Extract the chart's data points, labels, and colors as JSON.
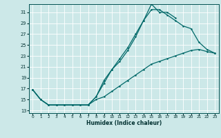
{
  "xlabel": "Humidex (Indice chaleur)",
  "bg_color": "#cce8e8",
  "line_color": "#006868",
  "grid_color": "#ffffff",
  "xlim": [
    -0.5,
    23.5
  ],
  "ylim": [
    12.5,
    32.5
  ],
  "xticks": [
    0,
    1,
    2,
    3,
    4,
    5,
    6,
    7,
    8,
    9,
    10,
    11,
    12,
    13,
    14,
    15,
    16,
    17,
    18,
    19,
    20,
    21,
    22,
    23
  ],
  "yticks": [
    13,
    15,
    17,
    19,
    21,
    23,
    25,
    27,
    29,
    31
  ],
  "line1_x": [
    0,
    1,
    2,
    3,
    4,
    5,
    6,
    7,
    8,
    9,
    10,
    11,
    12,
    13,
    14,
    15,
    16,
    17,
    18
  ],
  "line1_y": [
    16.8,
    15.0,
    14.0,
    14.0,
    14.0,
    14.0,
    14.0,
    14.0,
    15.5,
    18.5,
    20.5,
    22.5,
    24.5,
    27.0,
    29.5,
    32.5,
    31.0,
    31.0,
    30.0
  ],
  "line2_x": [
    0,
    1,
    2,
    3,
    4,
    5,
    6,
    7,
    8,
    9,
    10,
    11,
    12,
    13,
    14,
    15,
    16,
    17,
    18,
    19,
    20,
    21,
    22,
    23
  ],
  "line2_y": [
    16.8,
    15.0,
    14.0,
    14.0,
    14.0,
    14.0,
    14.0,
    14.0,
    15.5,
    18.0,
    20.5,
    22.0,
    24.0,
    26.5,
    29.5,
    31.5,
    31.5,
    30.5,
    29.5,
    28.5,
    28.0,
    25.5,
    24.2,
    23.5
  ],
  "line3_x": [
    0,
    1,
    2,
    3,
    4,
    5,
    6,
    7,
    8,
    9,
    10,
    11,
    12,
    13,
    14,
    15,
    16,
    17,
    18,
    19,
    20,
    21,
    22,
    23
  ],
  "line3_y": [
    16.8,
    15.0,
    14.0,
    14.0,
    14.0,
    14.0,
    14.0,
    14.0,
    15.0,
    15.5,
    16.5,
    17.5,
    18.5,
    19.5,
    20.5,
    21.5,
    22.0,
    22.5,
    23.0,
    23.5,
    24.0,
    24.2,
    23.8,
    23.5
  ]
}
